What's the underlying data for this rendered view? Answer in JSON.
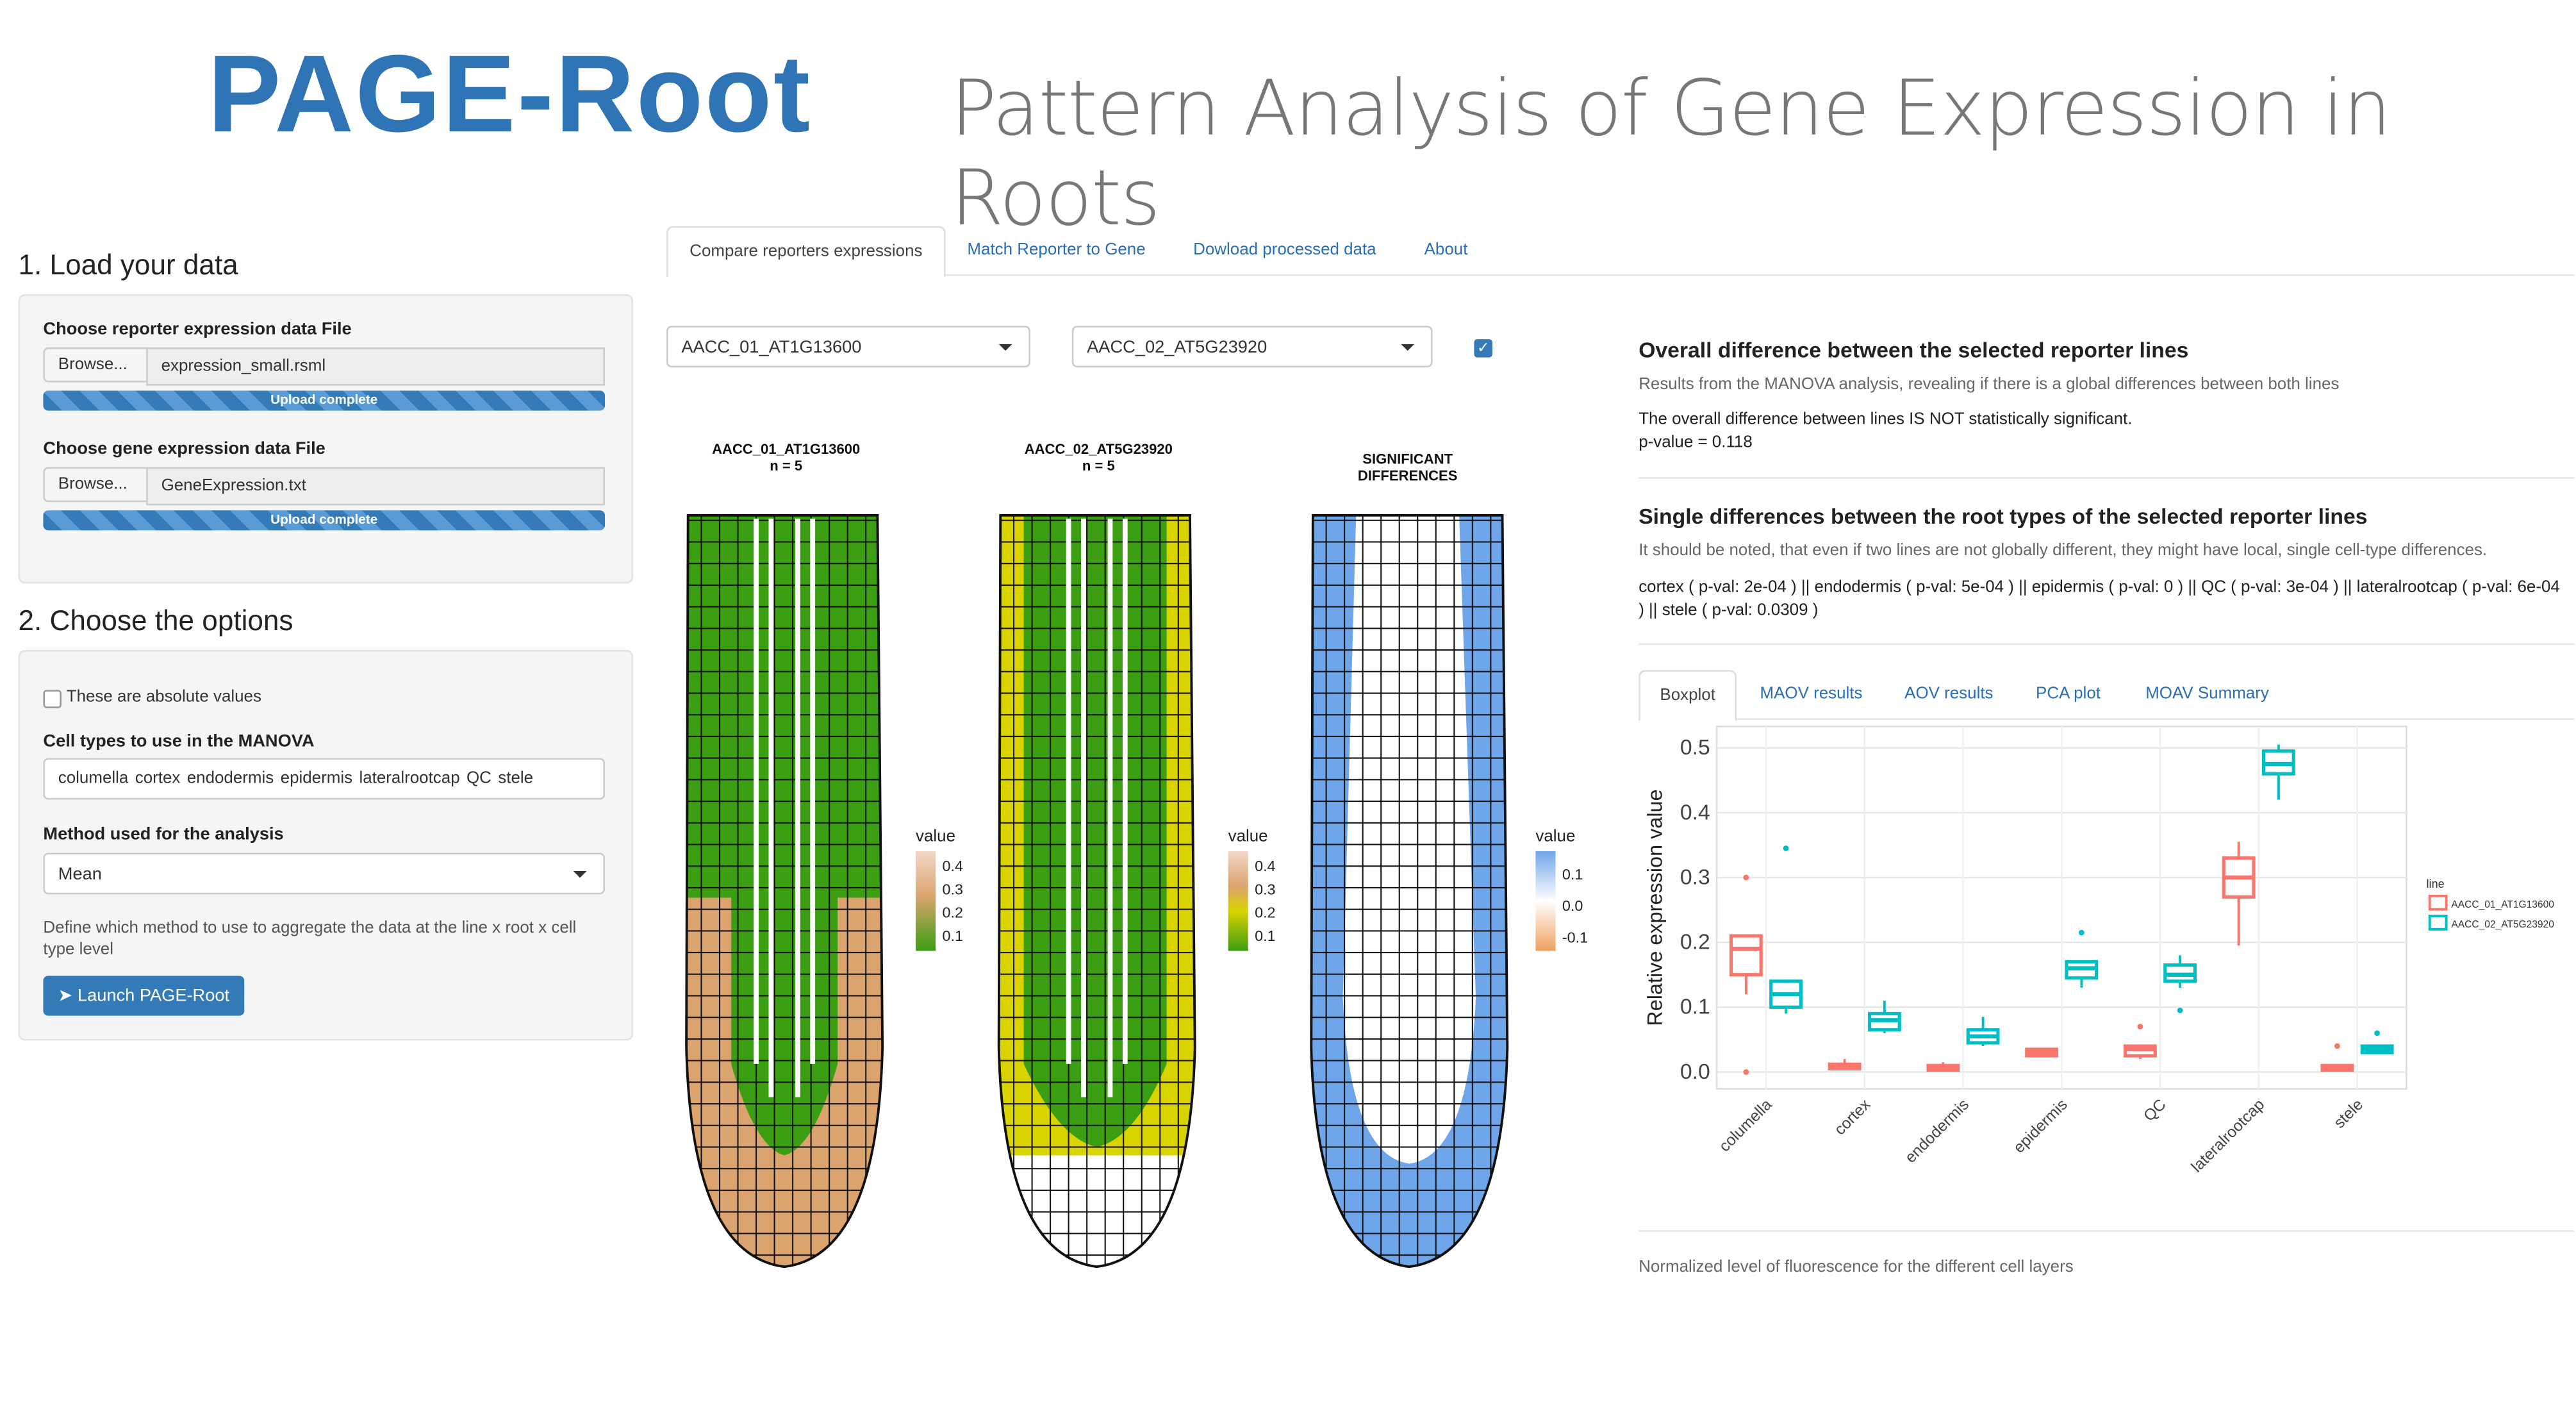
{
  "header": {
    "title": "PAGE-Root",
    "subtitle": "Pattern Analysis of Gene Expression in Roots"
  },
  "sidebar": {
    "section1": "1. Load your data",
    "reporter_label": "Choose reporter expression data File",
    "reporter_button": "Browse...",
    "reporter_file": "expression_small.rsml",
    "reporter_status": "Upload complete",
    "gene_label": "Choose gene expression data File",
    "gene_button": "Browse...",
    "gene_file": "GeneExpression.txt",
    "gene_status": "Upload complete",
    "section2": "2. Choose the options",
    "absolute_label": "These are absolute values",
    "cell_types_label": "Cell types to use in the MANOVA",
    "cell_types": [
      "columella",
      "cortex",
      "endodermis",
      "epidermis",
      "lateralrootcap",
      "QC",
      "stele"
    ],
    "method_label": "Method used for the analysis",
    "method_value": "Mean",
    "method_help": "Define which method to use to aggregate the data at the line x root x cell type level",
    "launch": "Launch PAGE-Root"
  },
  "tabs": [
    "Compare reporters expressions",
    "Match Reporter to Gene",
    "Dowload processed data",
    "About"
  ],
  "selectors": [
    "AACC_01_AT1G13600",
    "AACC_02_AT5G23920"
  ],
  "plots": [
    {
      "title": "AACC_01_AT1G13600",
      "subtitle": "n = 5",
      "legend_title": "value",
      "legend_ticks": [
        "0.4",
        "0.3",
        "0.2",
        "0.1"
      ]
    },
    {
      "title": "AACC_02_AT5G23920",
      "subtitle": "n = 5",
      "legend_title": "value",
      "legend_ticks": [
        "0.4",
        "0.3",
        "0.2",
        "0.1"
      ]
    },
    {
      "title": "SIGNIFICANT DIFFERENCES",
      "legend_title": "value",
      "legend_ticks": [
        "0.1",
        "0.0",
        "-0.1"
      ]
    }
  ],
  "overall": {
    "heading": "Overall difference between the selected reporter lines",
    "description": "Results from the MANOVA analysis, revealing if there is a global differences between both lines",
    "result": "The overall difference between lines IS NOT statistically significant.",
    "pvalue": "p-value = 0.118"
  },
  "single": {
    "heading": "Single differences between the root types of the selected reporter lines",
    "description": "It should be noted, that even if two lines are not globally different, they might have local, single cell-type differences.",
    "result": "cortex ( p-val: 2e-04 ) || endodermis ( p-val: 5e-04 ) || epidermis ( p-val: 0 ) || QC ( p-val: 3e-04 ) || lateralrootcap ( p-val: 6e-04 ) || stele ( p-val: 0.0309 )"
  },
  "result_tabs": [
    "Boxplot",
    "MAOV results",
    "AOV results",
    "PCA plot",
    "MOAV Summary"
  ],
  "boxplot": {
    "type": "box",
    "y_label": "Relative expression value",
    "legend_title": "line",
    "categories": [
      "columella",
      "cortex",
      "endodermis",
      "epidermis",
      "QC",
      "lateralrootcap",
      "stele"
    ],
    "ylim": [
      -0.026,
      0.533
    ],
    "yticks": [
      {
        "value": 0,
        "label": "0.0"
      },
      0.1,
      0.2,
      0.3,
      0.4,
      0.5
    ],
    "series": [
      {
        "name": "AACC_01_AT1G13600",
        "color": "#f8766d",
        "boxes": [
          {
            "low": 0.12,
            "q1": 0.15,
            "median": 0.19,
            "q3": 0.21,
            "high": 0.21,
            "outliers": [
              0.3,
              0.0
            ]
          },
          {
            "low": 0.005,
            "q1": 0.005,
            "median": 0.01,
            "q3": 0.012,
            "high": 0.02,
            "outliers": []
          },
          {
            "low": 0.003,
            "q1": 0.003,
            "median": 0.008,
            "q3": 0.01,
            "high": 0.015,
            "outliers": []
          },
          {
            "low": 0.025,
            "q1": 0.025,
            "median": 0.03,
            "q3": 0.035,
            "high": 0.035,
            "outliers": []
          },
          {
            "low": 0.02,
            "q1": 0.025,
            "median": 0.035,
            "q3": 0.04,
            "high": 0.04,
            "outliers": [
              0.07
            ]
          },
          {
            "low": 0.195,
            "q1": 0.27,
            "median": 0.3,
            "q3": 0.33,
            "high": 0.355,
            "outliers": []
          },
          {
            "low": 0.003,
            "q1": 0.003,
            "median": 0.008,
            "q3": 0.01,
            "high": 0.01,
            "outliers": [
              0.04
            ]
          }
        ]
      },
      {
        "name": "AACC_02_AT5G23920",
        "color": "#00bfc4",
        "boxes": [
          {
            "low": 0.09,
            "q1": 0.1,
            "median": 0.12,
            "q3": 0.14,
            "high": 0.14,
            "outliers": [
              0.345
            ]
          },
          {
            "low": 0.06,
            "q1": 0.065,
            "median": 0.08,
            "q3": 0.09,
            "high": 0.11,
            "outliers": []
          },
          {
            "low": 0.04,
            "q1": 0.045,
            "median": 0.055,
            "q3": 0.065,
            "high": 0.085,
            "outliers": []
          },
          {
            "low": 0.13,
            "q1": 0.145,
            "median": 0.16,
            "q3": 0.17,
            "high": 0.17,
            "outliers": [
              0.215
            ]
          },
          {
            "low": 0.13,
            "q1": 0.14,
            "median": 0.15,
            "q3": 0.165,
            "high": 0.18,
            "outliers": [
              0.095
            ]
          },
          {
            "low": 0.42,
            "q1": 0.46,
            "median": 0.475,
            "q3": 0.495,
            "high": 0.505,
            "outliers": []
          },
          {
            "low": 0.03,
            "q1": 0.03,
            "median": 0.035,
            "q3": 0.04,
            "high": 0.04,
            "outliers": [
              0.06
            ]
          }
        ]
      }
    ]
  },
  "caption": "Normalized level of fluorescence for the different cell layers"
}
